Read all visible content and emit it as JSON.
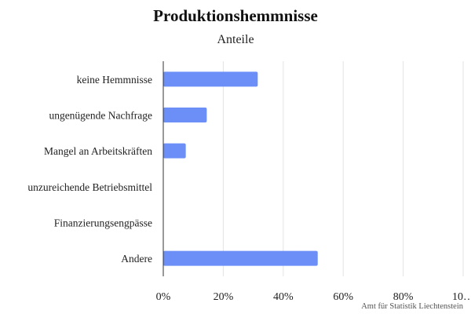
{
  "chart_data": {
    "type": "bar",
    "orientation": "horizontal",
    "title": "Produktionshemmnisse",
    "subtitle": "Anteile",
    "categories": [
      "keine Hemmnisse",
      "ungenügende Nachfrage",
      "Mangel an Arbeitskräften",
      "unzureichende Betriebsmittel",
      "Finanzierungsengpässe",
      "Andere"
    ],
    "values": [
      31.5,
      14.5,
      7.5,
      0,
      0,
      51.5
    ],
    "unit": "%",
    "xlim": [
      0,
      100
    ],
    "x_ticks": [
      "0%",
      "20%",
      "40%",
      "60%",
      "80%",
      "10…"
    ],
    "grid": true,
    "bar_color": "#6b8ff7",
    "credits": "Amt für Statistik Liechtenstein"
  }
}
